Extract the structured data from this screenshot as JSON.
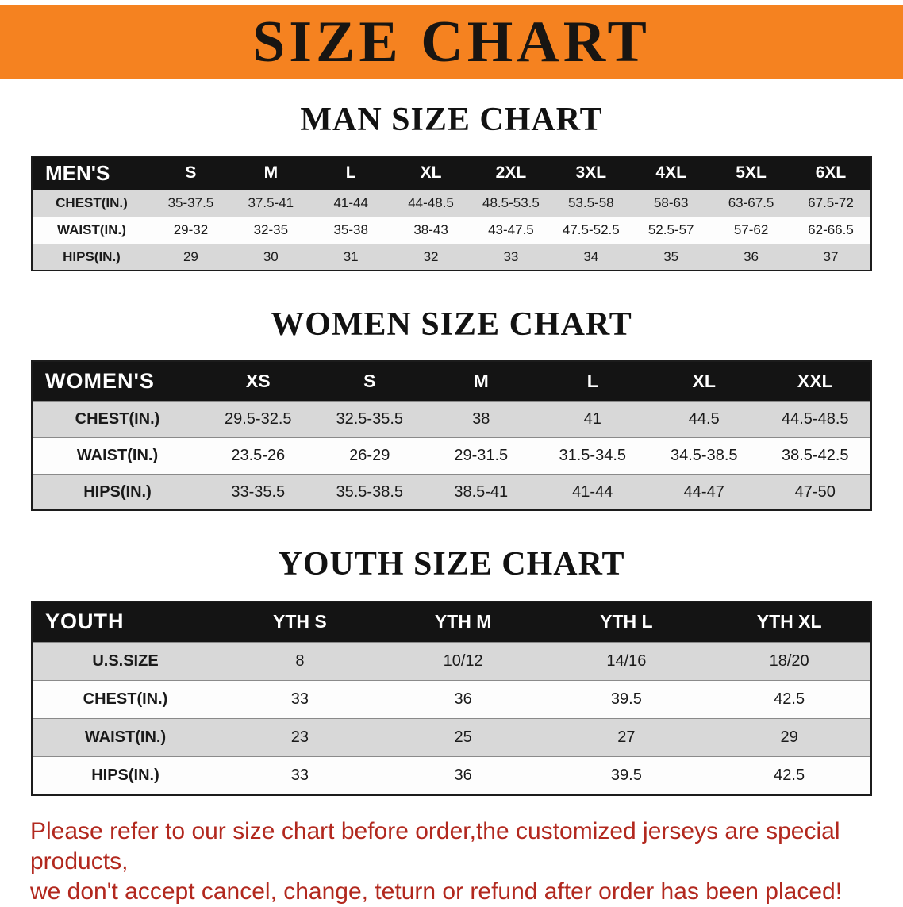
{
  "banner": {
    "title": "SIZE CHART"
  },
  "sections": [
    {
      "heading": "MAN SIZE CHART",
      "table": {
        "header": [
          "MEN'S",
          "S",
          "M",
          "L",
          "XL",
          "2XL",
          "3XL",
          "4XL",
          "5XL",
          "6XL"
        ],
        "rows": [
          {
            "label": "CHEST(IN.)",
            "values": [
              "35-37.5",
              "37.5-41",
              "41-44",
              "44-48.5",
              "48.5-53.5",
              "53.5-58",
              "58-63",
              "63-67.5",
              "67.5-72"
            ]
          },
          {
            "label": "WAIST(IN.)",
            "values": [
              "29-32",
              "32-35",
              "35-38",
              "38-43",
              "43-47.5",
              "47.5-52.5",
              "52.5-57",
              "57-62",
              "62-66.5"
            ]
          },
          {
            "label": "HIPS(IN.)",
            "values": [
              "29",
              "30",
              "31",
              "32",
              "33",
              "34",
              "35",
              "36",
              "37"
            ]
          }
        ]
      }
    },
    {
      "heading": "WOMEN SIZE CHART",
      "table": {
        "header": [
          "WOMEN'S",
          "XS",
          "S",
          "M",
          "L",
          "XL",
          "XXL"
        ],
        "rows": [
          {
            "label": "CHEST(IN.)",
            "values": [
              "29.5-32.5",
              "32.5-35.5",
              "38",
              "41",
              "44.5",
              "44.5-48.5"
            ]
          },
          {
            "label": "WAIST(IN.)",
            "values": [
              "23.5-26",
              "26-29",
              "29-31.5",
              "31.5-34.5",
              "34.5-38.5",
              "38.5-42.5"
            ]
          },
          {
            "label": "HIPS(IN.)",
            "values": [
              "33-35.5",
              "35.5-38.5",
              "38.5-41",
              "41-44",
              "44-47",
              "47-50"
            ]
          }
        ]
      }
    },
    {
      "heading": "YOUTH SIZE CHART",
      "table": {
        "header": [
          "YOUTH",
          "YTH S",
          "YTH M",
          "YTH L",
          "YTH XL"
        ],
        "rows": [
          {
            "label": "U.S.SIZE",
            "values": [
              "8",
              "10/12",
              "14/16",
              "18/20"
            ]
          },
          {
            "label": "CHEST(IN.)",
            "values": [
              "33",
              "36",
              "39.5",
              "42.5"
            ]
          },
          {
            "label": "WAIST(IN.)",
            "values": [
              "23",
              "25",
              "27",
              "29"
            ]
          },
          {
            "label": "HIPS(IN.)",
            "values": [
              "33",
              "36",
              "39.5",
              "42.5"
            ]
          }
        ]
      }
    }
  ],
  "disclaimer": {
    "line1": "Please refer to our size chart before order,the customized jerseys are special products,",
    "line2": "we don't accept cancel, change, teturn or refund after order has been placed!"
  },
  "colors": {
    "banner_bg": "#F58220",
    "banner_text": "#181512",
    "table_header_bg": "#141414",
    "table_header_text": "#ffffff",
    "row_shaded": "#d8d8d8",
    "row_plain": "#fdfdfd",
    "disclaimer_red": "#b2281e"
  }
}
